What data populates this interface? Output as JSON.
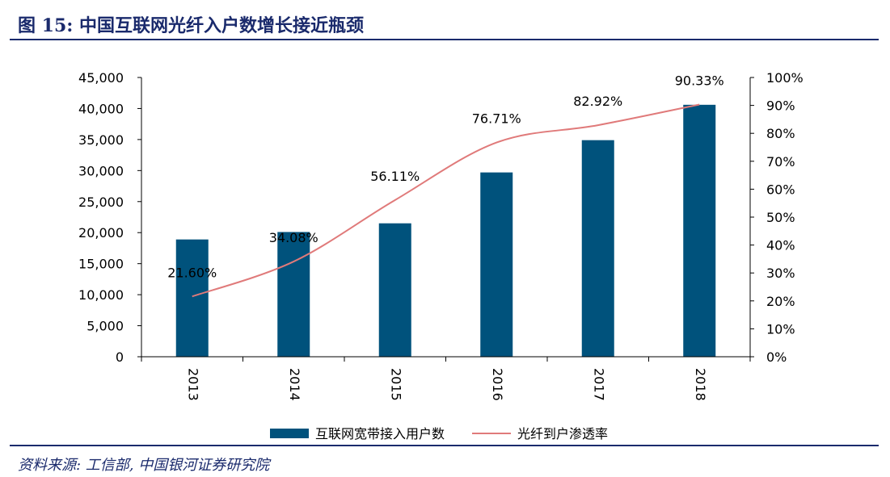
{
  "figure": {
    "title": "图 15:  中国互联网光纤入户数增长接近瓶颈",
    "source": "资料来源:  工信部,  中国银河证券研究院"
  },
  "colors": {
    "bar": "#00527c",
    "line": "#e07a7a",
    "frame": "#1a2a6c"
  },
  "chart_data": {
    "type": "bar",
    "title": "",
    "categories": [
      "2013",
      "2014",
      "2015",
      "2016",
      "2017",
      "2018"
    ],
    "series": [
      {
        "name": "互联网宽带接入用户数",
        "type": "bar",
        "axis": "left",
        "values": [
          18900,
          20100,
          21500,
          29700,
          34900,
          40600
        ]
      },
      {
        "name": "光纤到户渗透率",
        "type": "line",
        "axis": "right",
        "values": [
          21.6,
          34.08,
          56.11,
          76.71,
          82.92,
          90.33
        ],
        "labels": [
          "21.60%",
          "34.08%",
          "56.11%",
          "76.71%",
          "82.92%",
          "90.33%"
        ]
      }
    ],
    "y_left": {
      "min": 0,
      "max": 45000,
      "ticks": [
        0,
        5000,
        10000,
        15000,
        20000,
        25000,
        30000,
        35000,
        40000,
        45000
      ],
      "tick_labels": [
        "0",
        "5,000",
        "10,000",
        "15,000",
        "20,000",
        "25,000",
        "30,000",
        "35,000",
        "40,000",
        "45,000"
      ]
    },
    "y_right": {
      "min": 0,
      "max": 100,
      "ticks": [
        0,
        10,
        20,
        30,
        40,
        50,
        60,
        70,
        80,
        90,
        100
      ],
      "tick_labels": [
        "0%",
        "10%",
        "20%",
        "30%",
        "40%",
        "50%",
        "60%",
        "70%",
        "80%",
        "90%",
        "100%"
      ]
    },
    "grid": false,
    "legend_position": "bottom",
    "x_tick_rotation": "vertical"
  }
}
